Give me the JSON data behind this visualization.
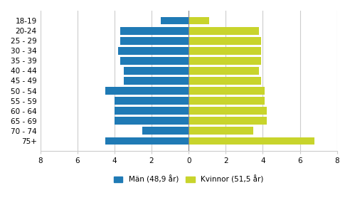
{
  "categories": [
    "18-19",
    "20-24",
    "25 - 29",
    "30 - 34",
    "35 - 39",
    "40 - 44",
    "45 - 49",
    "50 - 54",
    "55 - 59",
    "60 - 64",
    "65 - 69",
    "70 - 74",
    "75+"
  ],
  "men_values": [
    -1.5,
    -3.7,
    -3.7,
    -3.8,
    -3.7,
    -3.5,
    -3.5,
    -4.5,
    -4.0,
    -4.0,
    -4.0,
    -2.5,
    -4.5
  ],
  "women_values": [
    1.1,
    3.8,
    3.9,
    3.9,
    3.9,
    3.8,
    3.9,
    4.1,
    4.1,
    4.2,
    4.2,
    3.5,
    6.8
  ],
  "men_color": "#1f7ab5",
  "women_color": "#c8d42c",
  "men_label": "Män (48,9 år)",
  "women_label": "Kvinnor (51,5 år)",
  "xlim": [
    -8,
    8
  ],
  "xticks": [
    -8,
    -6,
    -4,
    -2,
    0,
    2,
    4,
    6,
    8
  ],
  "xtick_labels": [
    "8",
    "6",
    "4",
    "2",
    "0",
    "2",
    "4",
    "6",
    "8"
  ],
  "background_color": "#ffffff",
  "grid_color": "#cccccc",
  "bar_height": 0.75
}
